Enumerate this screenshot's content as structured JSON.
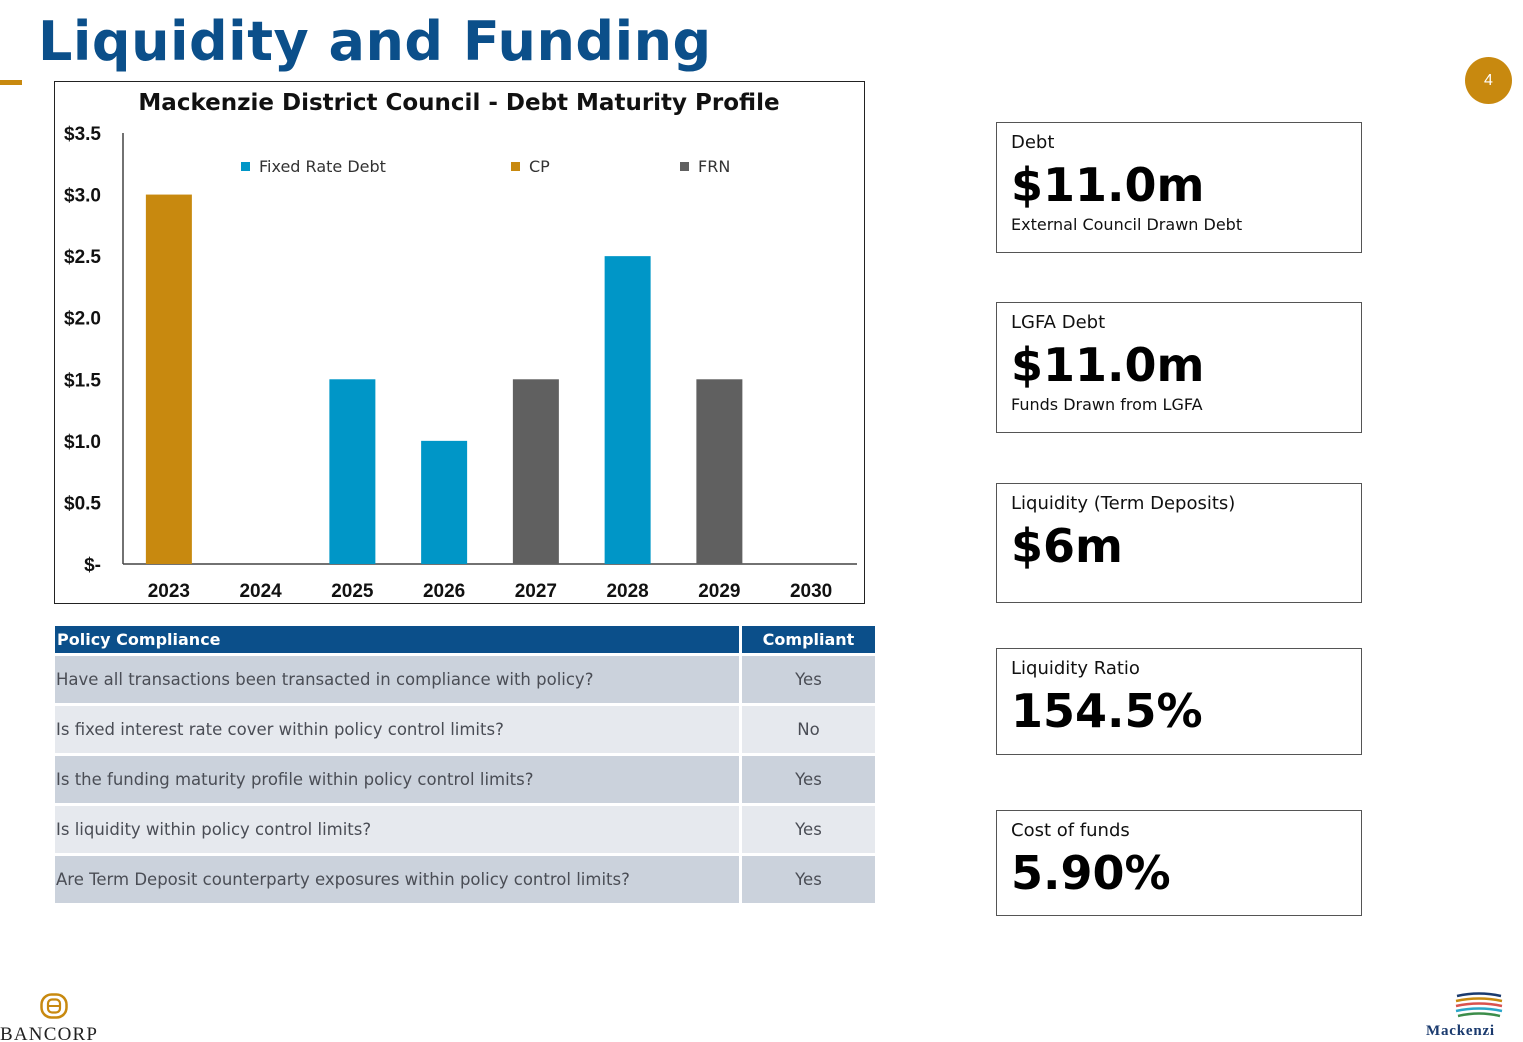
{
  "page": {
    "title": "Liquidity and Funding",
    "page_number": "4"
  },
  "chart_data": {
    "type": "bar",
    "title": "Mackenzie District Council - Debt Maturity Profile",
    "xlabel": "",
    "ylabel": "",
    "categories": [
      "2023",
      "2024",
      "2025",
      "2026",
      "2027",
      "2028",
      "2029",
      "2030"
    ],
    "series": [
      {
        "name": "Fixed Rate Debt",
        "color": "#0096c7",
        "values": [
          0,
          0,
          1.5,
          1.0,
          0,
          2.5,
          0,
          0
        ]
      },
      {
        "name": "CP",
        "color": "#c8890f",
        "values": [
          3.0,
          0,
          0,
          0,
          0,
          0,
          0,
          0
        ]
      },
      {
        "name": "FRN",
        "color": "#606060",
        "values": [
          0,
          0,
          0,
          0,
          1.5,
          0,
          1.5,
          0
        ]
      }
    ],
    "ylim": [
      0,
      3.5
    ],
    "yticks": [
      0,
      0.5,
      1.0,
      1.5,
      2.0,
      2.5,
      3.0,
      3.5
    ],
    "ytick_labels": [
      "$-",
      "$0.5",
      "$1.0",
      "$1.5",
      "$2.0",
      "$2.5",
      "$3.0",
      "$3.5"
    ],
    "legend_position": "top",
    "grid": false
  },
  "policy_table": {
    "headers": [
      "Policy Compliance",
      "Compliant"
    ],
    "rows": [
      {
        "question": "Have all transactions been transacted in compliance with policy?",
        "answer": "Yes"
      },
      {
        "question": "Is fixed interest rate cover within policy control limits?",
        "answer": "No"
      },
      {
        "question": "Is the funding maturity profile within policy control limits?",
        "answer": "Yes"
      },
      {
        "question": "Is liquidity within policy control limits?",
        "answer": "Yes"
      },
      {
        "question": "Are Term Deposit counterparty exposures within policy control limits?",
        "answer": "Yes"
      }
    ]
  },
  "kpis": [
    {
      "label": "Debt",
      "value": "$11.0m",
      "sub": "External Council Drawn Debt"
    },
    {
      "label": "LGFA Debt",
      "value": "$11.0m",
      "sub": "Funds Drawn from LGFA"
    },
    {
      "label": "Liquidity (Term Deposits)",
      "value": "$6m",
      "sub": ""
    },
    {
      "label": "Liquidity Ratio",
      "value": "154.5%",
      "sub": ""
    },
    {
      "label": "Cost of funds",
      "value": "5.90%",
      "sub": ""
    }
  ],
  "logos": {
    "left": {
      "text": "BANCORP",
      "icon": "bancorp-logo-icon",
      "color": "#c8890f"
    },
    "right": {
      "text": "Mackenzi",
      "icon": "mackenzie-logo-icon"
    }
  }
}
